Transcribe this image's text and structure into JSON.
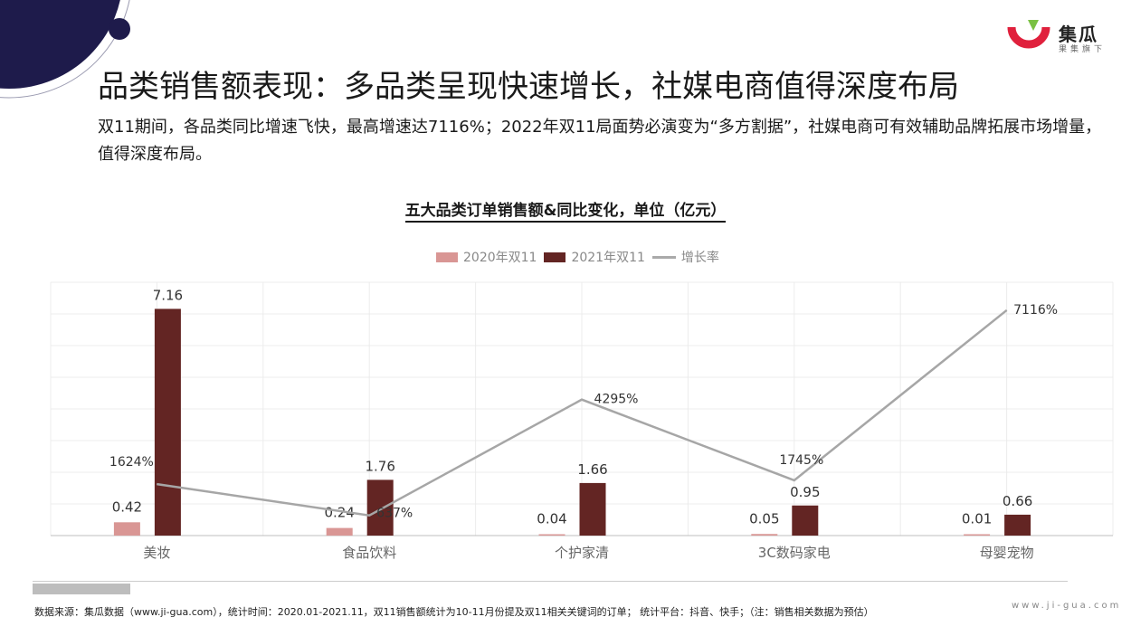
{
  "brand": {
    "name": "集瓜",
    "sub": "果集旗下",
    "site": "www.ji-gua.com",
    "colors": {
      "red": "#e0203c",
      "green": "#7ac143",
      "navy": "#1e1b4b"
    }
  },
  "header": {
    "title": "品类销售额表现：多品类呈现快速增长，社媒电商值得深度布局",
    "subtitle": "双11期间，各品类同比增速飞快，最高增速达7116%；2022年双11局面势必演变为“多方割据”，社媒电商可有效辅助品牌拓展市场增量，值得深度布局。"
  },
  "chart_data": {
    "type": "bar",
    "title": "五大品类订单销售额&同比变化，单位（亿元）",
    "categories": [
      "美妆",
      "食品饮料",
      "个护家清",
      "3C数码家电",
      "母婴宠物"
    ],
    "series": [
      {
        "name": "2020年双11",
        "type": "bar",
        "color": "#d99694",
        "values": [
          0.42,
          0.24,
          0.04,
          0.05,
          0.01
        ],
        "labels": [
          "0.42",
          "0.24",
          "0.04",
          "0.05",
          "0.01"
        ]
      },
      {
        "name": "2021年双11",
        "type": "bar",
        "color": "#632523",
        "values": [
          7.16,
          1.76,
          1.66,
          0.95,
          0.66
        ],
        "labels": [
          "7.16",
          "1.76",
          "1.66",
          "0.95",
          "0.66"
        ]
      },
      {
        "name": "增长率",
        "type": "line",
        "color": "#a6a6a6",
        "values": [
          1624,
          637,
          4295,
          1745,
          7116
        ],
        "labels": [
          "1624%",
          "637%",
          "4295%",
          "1745%",
          "7116%"
        ]
      }
    ],
    "ylim": [
      0,
      8
    ],
    "y2lim": [
      0,
      8000
    ],
    "grid": true,
    "legend": "top"
  },
  "footer": {
    "source": "数据来源：集瓜数据（www.ji-gua.com），统计时间：2020.01-2021.11，双11销售额统计为10-11月份提及双11相关关键词的订单；   统计平台：抖音、快手；（注：销售相关数据为预估）"
  }
}
